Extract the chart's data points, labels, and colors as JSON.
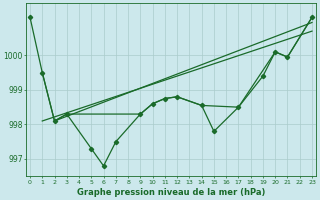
{
  "background_color": "#cce8ec",
  "grid_color": "#aacccc",
  "line_color": "#1a6b2a",
  "title": "Graphe pression niveau de la mer (hPa)",
  "yticks": [
    997,
    998,
    999,
    1000
  ],
  "ylim": [
    996.5,
    1001.5
  ],
  "xlim": [
    -0.3,
    23.3
  ],
  "figsize": [
    3.2,
    2.0
  ],
  "dpi": 100,
  "main_x": [
    0,
    1,
    2,
    3,
    5,
    6,
    7,
    9,
    10,
    11,
    12,
    14,
    15,
    17,
    19,
    20,
    21,
    23
  ],
  "main_y": [
    1001.1,
    999.5,
    998.1,
    998.3,
    997.3,
    996.8,
    997.5,
    998.3,
    998.6,
    998.75,
    998.8,
    998.55,
    997.8,
    998.5,
    999.4,
    1000.1,
    999.95,
    1001.1
  ],
  "trend1_x": [
    1,
    23
  ],
  "trend1_y": [
    998.1,
    1000.7
  ],
  "trend2_x": [
    2,
    23
  ],
  "trend2_y": [
    998.1,
    1000.95
  ],
  "smooth_x": [
    1,
    2,
    3,
    9,
    10,
    11,
    12,
    14,
    17,
    20,
    21,
    23
  ],
  "smooth_y": [
    999.5,
    998.1,
    998.3,
    998.3,
    998.6,
    998.75,
    998.8,
    998.55,
    998.5,
    1000.1,
    999.95,
    1001.1
  ]
}
